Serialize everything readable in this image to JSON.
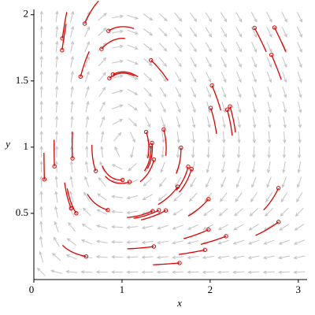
{
  "chart_data": {
    "type": "vector-field",
    "xlabel": "x",
    "ylabel": "y",
    "xlim": [
      0,
      3.1
    ],
    "ylim": [
      0,
      2.04
    ],
    "xticks": [
      0,
      1,
      2,
      3
    ],
    "yticks": [
      0.5,
      1,
      1.5,
      2
    ],
    "arrow_color": "#c4c4c4",
    "trajectory_color": "#e00000"
  }
}
